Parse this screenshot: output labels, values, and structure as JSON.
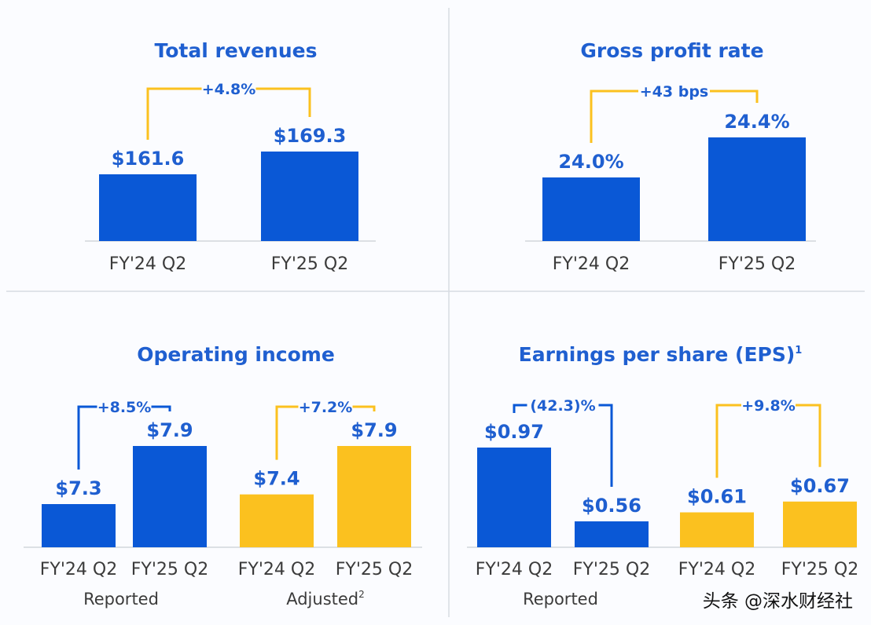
{
  "colors": {
    "blue": "#0a58d6",
    "yellow": "#fbc11f",
    "text_blue": "#1f5fd0",
    "axis": "#d2d6dc",
    "divider": "#d8dce2"
  },
  "watermark": "头条 @深水财经社",
  "chart_data": [
    {
      "type": "bar",
      "title": "Total revenues",
      "title_sup": "",
      "categories": [
        "FY'24 Q2",
        "FY'25 Q2"
      ],
      "series": [
        {
          "values": [
            161.6,
            169.3
          ],
          "labels": [
            "$161.6",
            "$169.3"
          ],
          "color": "blue"
        }
      ],
      "comparisons": [
        {
          "series": 0,
          "label": "+4.8%",
          "color": "yellow"
        }
      ],
      "groups": []
    },
    {
      "type": "bar",
      "title": "Gross profit rate",
      "title_sup": "",
      "categories": [
        "FY'24 Q2",
        "FY'25 Q2"
      ],
      "series": [
        {
          "values": [
            24.0,
            24.4
          ],
          "labels": [
            "24.0%",
            "24.4%"
          ],
          "color": "blue"
        }
      ],
      "comparisons": [
        {
          "series": 0,
          "label": "+43 bps",
          "color": "yellow"
        }
      ],
      "groups": []
    },
    {
      "type": "bar",
      "title": "Operating income",
      "title_sup": "",
      "categories": [
        "FY'24 Q2",
        "FY'25 Q2"
      ],
      "series": [
        {
          "values": [
            7.3,
            7.9
          ],
          "labels": [
            "$7.3",
            "$7.9"
          ],
          "color": "blue"
        },
        {
          "values": [
            7.4,
            7.9
          ],
          "labels": [
            "$7.4",
            "$7.9"
          ],
          "color": "yellow"
        }
      ],
      "comparisons": [
        {
          "series": 0,
          "label": "+8.5%",
          "color": "blue"
        },
        {
          "series": 1,
          "label": "+7.2%",
          "color": "yellow"
        }
      ],
      "groups": [
        {
          "label": "Reported",
          "sup": ""
        },
        {
          "label": "Adjusted",
          "sup": "2"
        }
      ]
    },
    {
      "type": "bar",
      "title": "Earnings per share (EPS)",
      "title_sup": "1",
      "categories": [
        "FY'24 Q2",
        "FY'25 Q2"
      ],
      "series": [
        {
          "values": [
            0.97,
            0.56
          ],
          "labels": [
            "$0.97",
            "$0.56"
          ],
          "color": "blue"
        },
        {
          "values": [
            0.61,
            0.67
          ],
          "labels": [
            "$0.61",
            "$0.67"
          ],
          "color": "yellow"
        }
      ],
      "comparisons": [
        {
          "series": 0,
          "label": "(42.3)%",
          "color": "blue"
        },
        {
          "series": 1,
          "label": "+9.8%",
          "color": "yellow"
        }
      ],
      "groups": [
        {
          "label": "Reported",
          "sup": ""
        },
        {
          "label": "",
          "sup": ""
        }
      ]
    }
  ]
}
